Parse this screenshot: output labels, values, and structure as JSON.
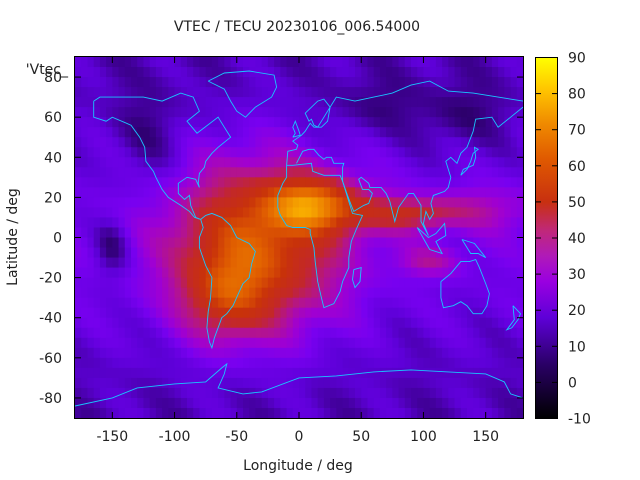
{
  "chart_data": {
    "type": "heatmap",
    "title": "VTEC / TECU 20230106_006.54000",
    "xlabel": "Longitude / deg",
    "ylabel": "Latitude / deg",
    "legend_key": "'Vtec_",
    "xlim": [
      -180,
      180
    ],
    "ylim": [
      -90,
      90
    ],
    "x_ticks": [
      -150,
      -100,
      -50,
      0,
      50,
      100,
      150
    ],
    "y_ticks": [
      -80,
      -60,
      -40,
      -20,
      0,
      20,
      40,
      60,
      80
    ],
    "colorbar": {
      "range": [
        -10,
        90
      ],
      "ticks": [
        -10,
        0,
        10,
        20,
        30,
        40,
        50,
        60,
        70,
        80,
        90
      ]
    },
    "field_description_values": {
      "background_tecu": 14,
      "peak_tecu": 85,
      "peak_location": [
        10,
        18
      ],
      "trough_location": [
        -150,
        -5
      ],
      "trough_tecu": 5
    }
  }
}
